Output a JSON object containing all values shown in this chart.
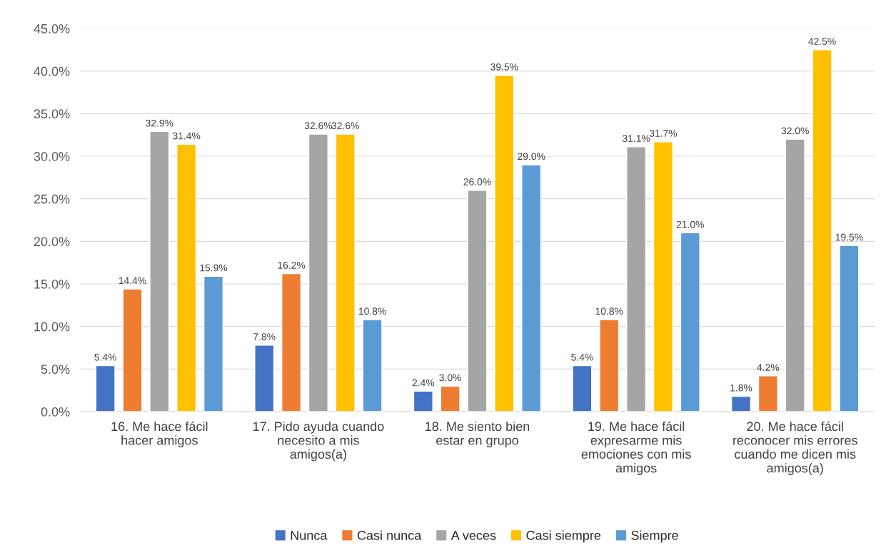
{
  "chart_data": {
    "type": "bar",
    "categories": [
      "16. Me hace fácil\nhacer amigos",
      "17. Pido ayuda cuando\nnecesito a mis\namigos(a)",
      "18. Me siento bien\nestar en grupo",
      "19. Me hace fácil\nexpresarme mis\nemociones con mis\namigos",
      "20. Me hace fácil\nreconocer mis errores\ncuando me dicen mis\namigos(a)"
    ],
    "series": [
      {
        "name": "Nunca",
        "color": "#4472c4",
        "values": [
          5.4,
          7.8,
          2.4,
          5.4,
          1.8
        ],
        "value_labels": [
          "5.4%",
          "7.8%",
          "2.4%",
          "5.4%",
          "1.8%"
        ]
      },
      {
        "name": "Casi nunca",
        "color": "#ed7d31",
        "values": [
          14.4,
          16.2,
          3.0,
          10.8,
          4.2
        ],
        "value_labels": [
          "14.4%",
          "16.2%",
          "3.0%",
          "10.8%",
          "4.2%"
        ]
      },
      {
        "name": "A veces",
        "color": "#a5a5a5",
        "values": [
          32.9,
          32.6,
          26.0,
          31.1,
          32.0
        ],
        "value_labels": [
          "32.9%",
          "32.6%",
          "26.0%",
          "31.1%",
          "32.0%"
        ]
      },
      {
        "name": "Casi siempre",
        "color": "#ffc000",
        "values": [
          31.4,
          32.6,
          39.5,
          31.7,
          42.5
        ],
        "value_labels": [
          "31.4%",
          "32.6%",
          "39.5%",
          "31.7%",
          "42.5%"
        ]
      },
      {
        "name": "Siempre",
        "color": "#5b9bd5",
        "values": [
          15.9,
          10.8,
          29.0,
          21.0,
          19.5
        ],
        "value_labels": [
          "15.9%",
          "10.8%",
          "29.0%",
          "21.0%",
          "19.5%"
        ]
      }
    ],
    "ylim": [
      0,
      45
    ],
    "yticks": [
      {
        "value": 0,
        "label": "0.0%"
      },
      {
        "value": 5,
        "label": "5.0%"
      },
      {
        "value": 10,
        "label": "10.0%"
      },
      {
        "value": 15,
        "label": "15.0%"
      },
      {
        "value": 20,
        "label": "20.0%"
      },
      {
        "value": 25,
        "label": "25.0%"
      },
      {
        "value": 30,
        "label": "30.0%"
      },
      {
        "value": 35,
        "label": "35.0%"
      },
      {
        "value": 40,
        "label": "40.0%"
      },
      {
        "value": 45,
        "label": "45.0%"
      }
    ],
    "grid": "y",
    "legend": "bottom"
  }
}
